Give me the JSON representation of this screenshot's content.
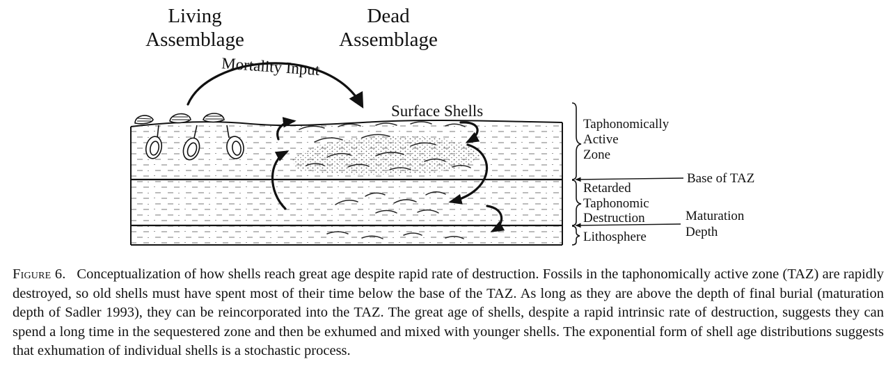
{
  "labels": {
    "living_line1": "Living",
    "living_line2": "Assemblage",
    "dead_line1": "Dead",
    "dead_line2": "Assemblage",
    "mortality_input": "Mortality Input",
    "surface_shells": "Surface Shells",
    "taz_line1": "Taphonomically",
    "taz_line2": "Active",
    "taz_line3": "Zone",
    "base_of_taz": "Base of TAZ",
    "retarded_line1": "Retarded",
    "retarded_line2": "Taphonomic",
    "retarded_line3": "Destruction",
    "maturation_line1": "Maturation",
    "maturation_line2": "Depth",
    "lithosphere": "Lithosphere"
  },
  "caption": {
    "label": "Figure 6.",
    "text": "Conceptualization of how shells reach great age despite rapid rate of destruction. Fossils in the taphonomically active zone (TAZ) are rapidly destroyed, so old shells must have spent most of their time below the base of the TAZ. As long as they are above the depth of final burial (maturation depth of Sadler 1993), they can be reincorporated into the TAZ. The great age of shells, despite a rapid intrinsic rate of destruction, suggests they can spend a long time in the sequestered zone and then be exhumed and mixed with younger shells. The exponential form of shell age distributions suggests that exhumation of individual shells is a stochastic process."
  }
}
